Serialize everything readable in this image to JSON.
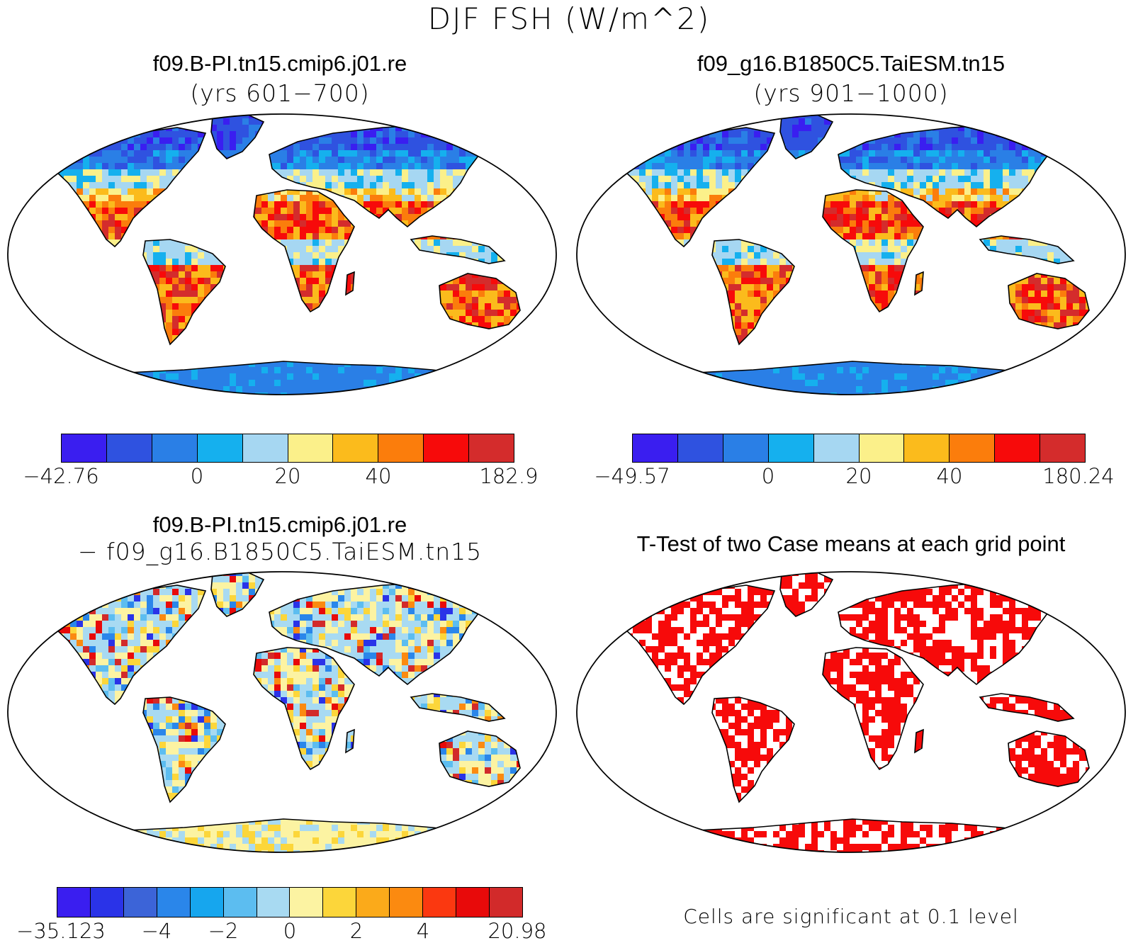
{
  "title": "DJF FSH (W/m^2)",
  "panels": {
    "p1": {
      "title": "f09.B-PI.tn15.cmip6.j01.re",
      "subtitle": "(yrs 601−700)"
    },
    "p2": {
      "title": "f09_g16.B1850C5.TaiESM.tn15",
      "subtitle": "(yrs 901−1000)"
    },
    "p3": {
      "title": "f09.B-PI.tn15.cmip6.j01.re",
      "subtitle": "− f09_g16.B1850C5.TaiESM.tn15"
    },
    "p4": {
      "title": "T-Test of two Case means at each grid point",
      "note": "Cells are significant at 0.1 level"
    }
  },
  "colorbars": {
    "cb1": {
      "colors": [
        "#3a1ef0",
        "#2f52e0",
        "#2a7fe6",
        "#15b0ee",
        "#a6d7f2",
        "#fbf08a",
        "#fbbb1c",
        "#fb7d0c",
        "#f70a0a",
        "#d42c2c"
      ],
      "labels": [
        "−42.76",
        "0",
        "20",
        "40",
        "182.9"
      ]
    },
    "cb2": {
      "colors": [
        "#3a1ef0",
        "#2f52e0",
        "#2a7fe6",
        "#15b0ee",
        "#a6d7f2",
        "#fbf08a",
        "#fbbb1c",
        "#fb7d0c",
        "#f70a0a",
        "#d42c2c"
      ],
      "labels": [
        "−49.57",
        "0",
        "20",
        "40",
        "180.24"
      ]
    },
    "cb3": {
      "colors": [
        "#3a1ef0",
        "#2a33e8",
        "#3c64d8",
        "#2a86ea",
        "#16a6ee",
        "#5cbdf0",
        "#a8daf2",
        "#fcf3a2",
        "#fcd63a",
        "#fbaa1a",
        "#fb8a10",
        "#fb3810",
        "#e80a0a",
        "#d22a2a"
      ],
      "labels": [
        "−35.123",
        "−4",
        "−2",
        "0",
        "2",
        "4",
        "20.98"
      ]
    }
  }
}
